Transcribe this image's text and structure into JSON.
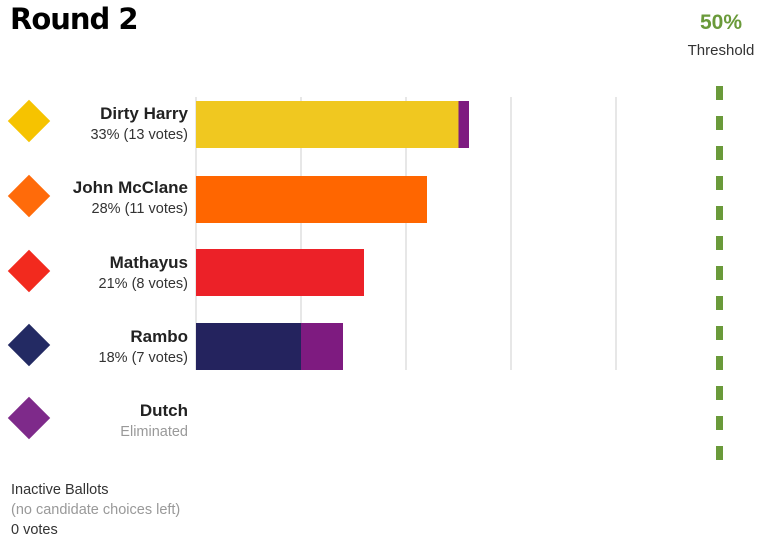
{
  "header": {
    "title": "Round 2",
    "threshold_pct": "50%",
    "threshold_label": "Threshold"
  },
  "candidates": [
    {
      "name": "Dirty Harry",
      "status": "33% (13 votes)",
      "color": "#f6c300"
    },
    {
      "name": "John McClane",
      "status": "28% (11 votes)",
      "color": "#ff6b0a"
    },
    {
      "name": "Mathayus",
      "status": "21% (8 votes)",
      "color": "#f22a1e"
    },
    {
      "name": "Rambo",
      "status": "18% (7 votes)",
      "color": "#232a63"
    },
    {
      "name": "Dutch",
      "status": "Eliminated",
      "color": "#7e2a8a"
    }
  ],
  "inactive": {
    "title": "Inactive Ballots",
    "note": "(no candidate choices left)",
    "votes": "0 votes"
  },
  "chart_data": {
    "type": "bar",
    "orientation": "horizontal",
    "stacked": true,
    "categories": [
      "Dirty Harry",
      "John McClane",
      "Mathayus",
      "Rambo",
      "Dutch"
    ],
    "series": [
      {
        "values": [
          12.5,
          11,
          8,
          5,
          0
        ],
        "color": "#f0c820"
      },
      {
        "values": [
          0.5,
          0,
          0,
          2,
          0
        ],
        "color": "#7e1b80"
      }
    ],
    "bar_colors": [
      "#f0c820",
      "#ff6600",
      "#ec2128",
      "#24235e",
      "#7e1b80"
    ],
    "transfer_color": "#7e1b80",
    "xlim": [
      0,
      20
    ],
    "gridlines": [
      0,
      5,
      10,
      15,
      20
    ],
    "threshold": 50,
    "grid": true
  }
}
